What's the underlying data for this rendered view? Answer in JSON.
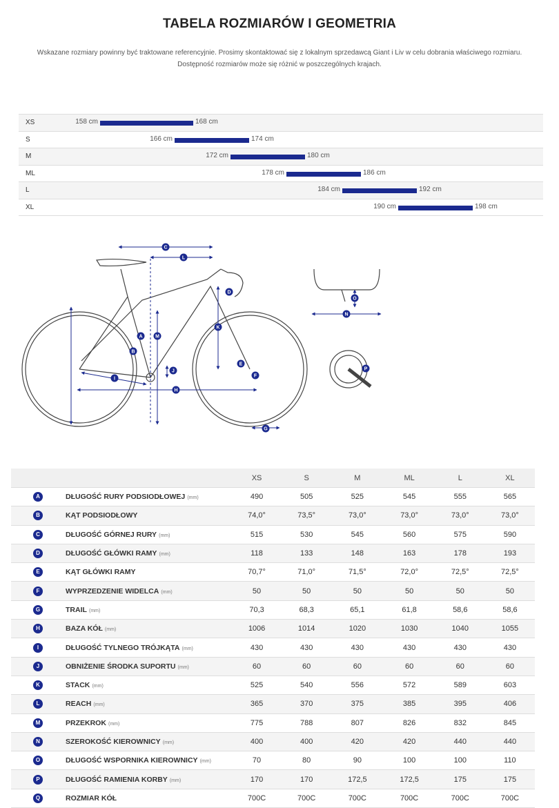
{
  "title": "TABELA ROZMIARÓW I GEOMETRIA",
  "intro_line1": "Wskazane rozmiary powinny być traktowane referencyjnie. Prosimy skontaktować się z lokalnym sprzedawcą Giant i Liv w celu dobrania właściwego rozmiaru.",
  "intro_line2": "Dostępność rozmiarów może się różnić w poszczególnych krajach.",
  "colors": {
    "accent": "#1b2a8f"
  },
  "size_chart": {
    "min_height": 158,
    "max_height": 198,
    "rows": [
      {
        "size": "XS",
        "min": 158,
        "max": 168,
        "min_label": "158 cm",
        "max_label": "168 cm"
      },
      {
        "size": "S",
        "min": 166,
        "max": 174,
        "min_label": "166 cm",
        "max_label": "174 cm"
      },
      {
        "size": "M",
        "min": 172,
        "max": 180,
        "min_label": "172 cm",
        "max_label": "180 cm"
      },
      {
        "size": "ML",
        "min": 178,
        "max": 186,
        "min_label": "178 cm",
        "max_label": "186 cm"
      },
      {
        "size": "L",
        "min": 184,
        "max": 192,
        "min_label": "184 cm",
        "max_label": "192 cm"
      },
      {
        "size": "XL",
        "min": 190,
        "max": 198,
        "min_label": "190 cm",
        "max_label": "198 cm"
      }
    ]
  },
  "diagram_letters": [
    "A",
    "B",
    "C",
    "D",
    "E",
    "F",
    "G",
    "H",
    "I",
    "J",
    "K",
    "L",
    "M",
    "N",
    "O",
    "P"
  ],
  "geometry": {
    "headers": [
      "XS",
      "S",
      "M",
      "ML",
      "L",
      "XL"
    ],
    "rows": [
      {
        "letter": "A",
        "name": "DŁUGOŚĆ RURY PODSIODŁOWEJ",
        "unit": "(mm)",
        "values": [
          "490",
          "505",
          "525",
          "545",
          "555",
          "565"
        ]
      },
      {
        "letter": "B",
        "name": "KĄT PODSIODŁOWY",
        "unit": "",
        "values": [
          "74,0°",
          "73,5°",
          "73,0°",
          "73,0°",
          "73,0°",
          "73,0°"
        ]
      },
      {
        "letter": "C",
        "name": "DŁUGOŚĆ GÓRNEJ RURY",
        "unit": "(mm)",
        "values": [
          "515",
          "530",
          "545",
          "560",
          "575",
          "590"
        ]
      },
      {
        "letter": "D",
        "name": "DŁUGOŚĆ GŁÓWKI RAMY",
        "unit": "(mm)",
        "values": [
          "118",
          "133",
          "148",
          "163",
          "178",
          "193"
        ]
      },
      {
        "letter": "E",
        "name": "KĄT GŁÓWKI RAMY",
        "unit": "",
        "values": [
          "70,7°",
          "71,0°",
          "71,5°",
          "72,0°",
          "72,5°",
          "72,5°"
        ]
      },
      {
        "letter": "F",
        "name": "WYPRZEDZENIE WIDELCA",
        "unit": "(mm)",
        "values": [
          "50",
          "50",
          "50",
          "50",
          "50",
          "50"
        ]
      },
      {
        "letter": "G",
        "name": "TRAIL",
        "unit": "(mm)",
        "values": [
          "70,3",
          "68,3",
          "65,1",
          "61,8",
          "58,6",
          "58,6"
        ]
      },
      {
        "letter": "H",
        "name": "BAZA KÓŁ",
        "unit": "(mm)",
        "values": [
          "1006",
          "1014",
          "1020",
          "1030",
          "1040",
          "1055"
        ]
      },
      {
        "letter": "I",
        "name": "DŁUGOŚĆ TYLNEGO TRÓJKĄTA",
        "unit": "(mm)",
        "values": [
          "430",
          "430",
          "430",
          "430",
          "430",
          "430"
        ]
      },
      {
        "letter": "J",
        "name": "OBNIŻENIE ŚRODKA SUPORTU",
        "unit": "(mm)",
        "values": [
          "60",
          "60",
          "60",
          "60",
          "60",
          "60"
        ]
      },
      {
        "letter": "K",
        "name": "STACK",
        "unit": "(mm)",
        "values": [
          "525",
          "540",
          "556",
          "572",
          "589",
          "603"
        ]
      },
      {
        "letter": "L",
        "name": "REACH",
        "unit": "(mm)",
        "values": [
          "365",
          "370",
          "375",
          "385",
          "395",
          "406"
        ]
      },
      {
        "letter": "M",
        "name": "PRZEKROK",
        "unit": "(mm)",
        "values": [
          "775",
          "788",
          "807",
          "826",
          "832",
          "845"
        ]
      },
      {
        "letter": "N",
        "name": "SZEROKOŚĆ KIEROWNICY",
        "unit": "(mm)",
        "values": [
          "400",
          "400",
          "420",
          "420",
          "440",
          "440"
        ]
      },
      {
        "letter": "O",
        "name": "DŁUGOŚĆ WSPORNIKA KIEROWNICY",
        "unit": "(mm)",
        "values": [
          "70",
          "80",
          "90",
          "100",
          "100",
          "110"
        ]
      },
      {
        "letter": "P",
        "name": "DŁUGOŚĆ RAMIENIA KORBY",
        "unit": "(mm)",
        "values": [
          "170",
          "170",
          "172,5",
          "172,5",
          "175",
          "175"
        ]
      },
      {
        "letter": "Q",
        "name": "ROZMIAR KÓŁ",
        "unit": "",
        "values": [
          "700C",
          "700C",
          "700C",
          "700C",
          "700C",
          "700C"
        ]
      }
    ]
  }
}
